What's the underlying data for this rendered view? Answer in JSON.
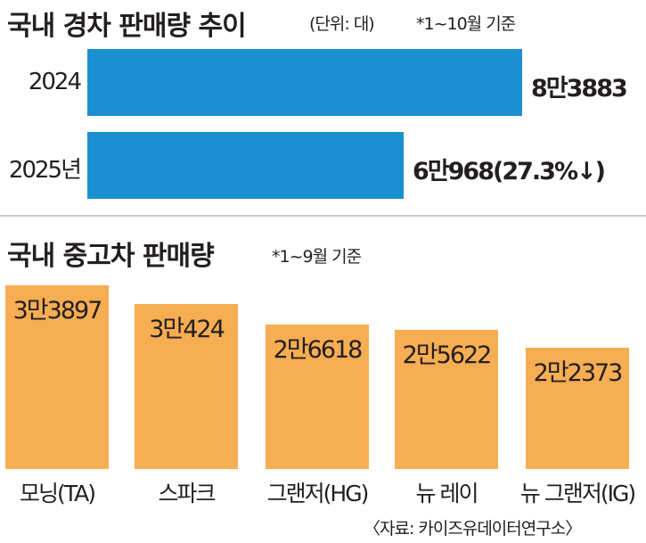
{
  "chart_data": [
    {
      "type": "bar",
      "orientation": "horizontal",
      "title": "국내 경차 판매량 추이",
      "unit_note": "(단위: 대)",
      "period_note": "*1~10월 기준",
      "categories": [
        "2024",
        "2025년"
      ],
      "values": [
        83883,
        60968
      ],
      "value_labels": [
        "8만3883",
        "6만968(27.3%↓)"
      ],
      "color": "#1c8fd0"
    },
    {
      "type": "bar",
      "orientation": "vertical",
      "title": "국내 중고차 판매량",
      "period_note": "*1~9월 기준",
      "categories": [
        "모닝(TA)",
        "스파크",
        "그랜저(HG)",
        "뉴 레이",
        "뉴 그랜저(IG)"
      ],
      "values": [
        33897,
        30424,
        26618,
        25622,
        22373
      ],
      "value_labels": [
        "3만3897",
        "3만424",
        "2만6618",
        "2만5622",
        "2만2373"
      ],
      "color": "#f7ad52"
    }
  ],
  "source": "〈자료: 카이즈유데이터연구소〉"
}
